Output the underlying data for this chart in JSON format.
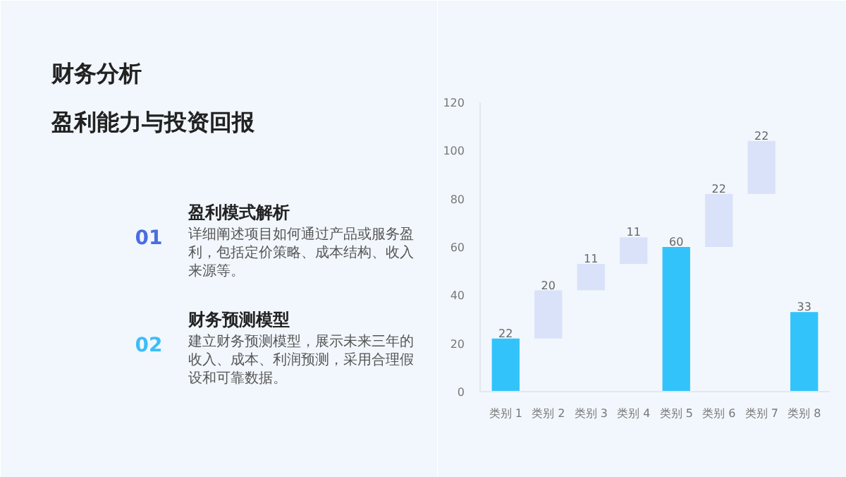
{
  "chart_data": {
    "type": "bar",
    "title": "财务分析",
    "subtitle": "盈利能力与投资回报",
    "annotations": [
      "01",
      "盈利模式解析",
      "详细阐述项目如何通过产品或服务盈利，包括定价策略、成本结构、收入来源等。",
      "02",
      "财务预测模型",
      "建立财务预测模型，展示未来三年的收入、成本、利润预测，采用合理假设和可靠数据。"
    ],
    "categories": [
      "类别 1",
      "类别 2",
      "类别 3",
      "类别 4",
      "类别 5",
      "类别 6",
      "类别 7",
      "类别 8"
    ],
    "values": [
      22,
      20,
      11,
      11,
      60,
      22,
      22,
      33
    ],
    "base": [
      0,
      22,
      42,
      53,
      0,
      60,
      82,
      0
    ],
    "colors": [
      "#33c3fb",
      "#d9e2f8",
      "#d9e2f8",
      "#d9e2f8",
      "#33c3fb",
      "#d9e2f8",
      "#d9e2f8",
      "#33c3fb"
    ],
    "ylim": [
      0,
      120
    ],
    "yticks": [
      0,
      20,
      40,
      60,
      80,
      100,
      120
    ],
    "data_labels": true,
    "grid": false
  }
}
